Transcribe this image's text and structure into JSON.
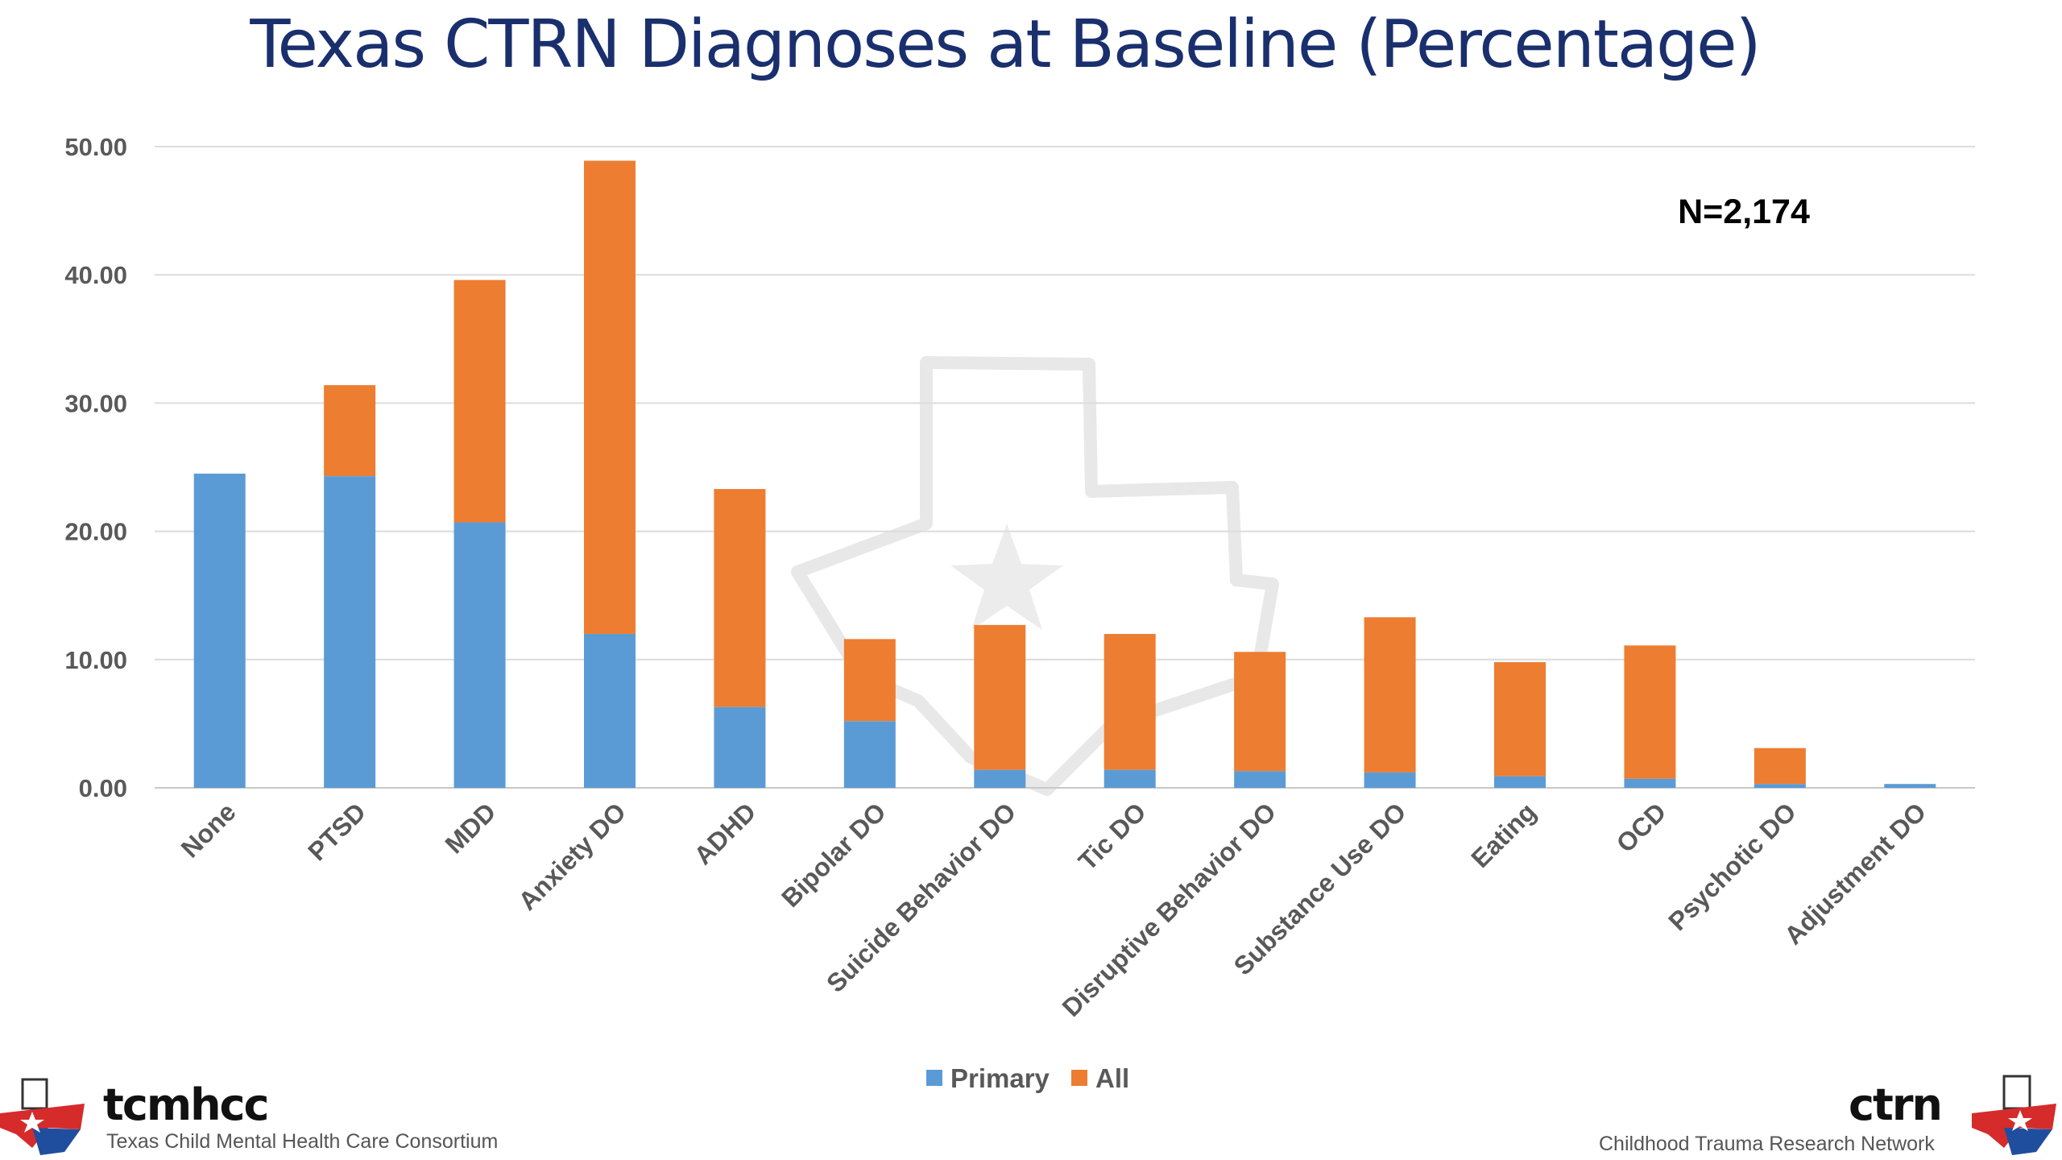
{
  "chart_data": {
    "type": "bar",
    "stacked": true,
    "title": "Texas CTRN Diagnoses at Baseline (Percentage)",
    "annotation": "N=2,174",
    "categories": [
      "None",
      "PTSD",
      "MDD",
      "Anxiety DO",
      "ADHD",
      "Bipolar DO",
      "Suicide Behavior DO",
      "Tic DO",
      "Disruptive Behavior DO",
      "Substance Use DO",
      "Eating",
      "OCD",
      "Psychotic DO",
      "Adjustment DO"
    ],
    "series": [
      {
        "name": "Primary",
        "color": "#5b9bd5",
        "values": [
          24.5,
          24.3,
          20.7,
          12.0,
          6.3,
          5.2,
          1.4,
          1.4,
          1.3,
          1.2,
          0.9,
          0.7,
          0.3,
          0.3
        ]
      },
      {
        "name": "All",
        "color": "#ed7d31",
        "values": [
          24.5,
          31.4,
          39.6,
          48.9,
          23.3,
          11.6,
          12.7,
          12.0,
          10.6,
          13.3,
          9.8,
          11.1,
          3.1,
          0.3
        ]
      }
    ],
    "ylim": [
      0,
      50
    ],
    "yticks": [
      "0.00",
      "10.00",
      "20.00",
      "30.00",
      "40.00",
      "50.00"
    ],
    "grid": true,
    "legend_position": "bottom-center"
  },
  "logos": {
    "left_name": "tcmhcc",
    "left_subtitle": "Texas Child Mental Health Care Consortium",
    "right_name": "ctrn",
    "right_subtitle": "Childhood Trauma Research Network",
    "flag_colors": {
      "red": "#d62b2b",
      "blue": "#1f4e9e"
    }
  }
}
